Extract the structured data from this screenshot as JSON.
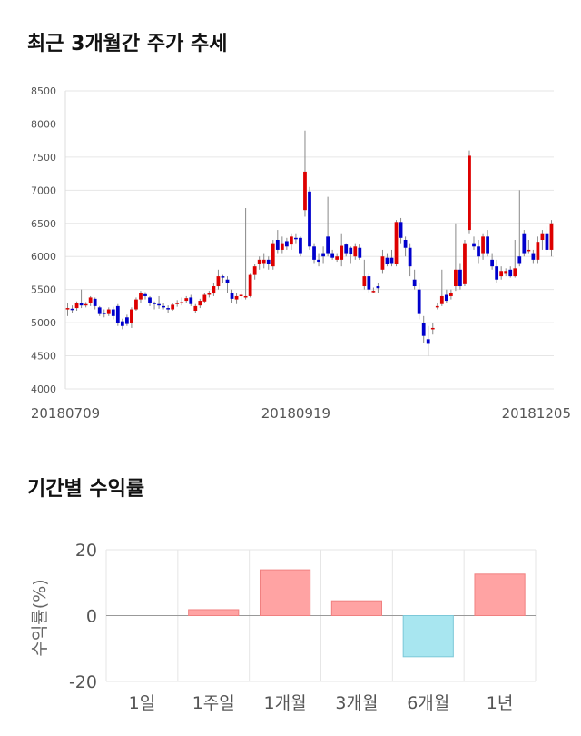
{
  "sections": {
    "price_title": "최근 3개월간 주가 추세",
    "return_title": "기간별 수익률"
  },
  "colors": {
    "up": "#dd0000",
    "down": "#0000cc",
    "bar_pos": "#ffa3a3",
    "bar_neg": "#a8e6f0",
    "grid": "#e6e6e6"
  },
  "chart_data": [
    {
      "type": "candlestick",
      "title": "최근 3개월간 주가 추세",
      "x_tick_labels": [
        "20180709",
        "20180919",
        "20181205"
      ],
      "y_ticks": [
        4000,
        4500,
        5000,
        5500,
        6000,
        6500,
        7000,
        7500,
        8000,
        8500
      ],
      "ylim": [
        4000,
        8500
      ],
      "grid": true,
      "candles": [
        [
          5200,
          5220,
          5100,
          5300
        ],
        [
          5210,
          5200,
          5150,
          5260
        ],
        [
          5220,
          5300,
          5180,
          5320
        ],
        [
          5290,
          5260,
          5220,
          5500
        ],
        [
          5260,
          5280,
          5230,
          5310
        ],
        [
          5300,
          5380,
          5250,
          5400
        ],
        [
          5360,
          5250,
          5200,
          5380
        ],
        [
          5230,
          5130,
          5100,
          5250
        ],
        [
          5150,
          5140,
          5080,
          5200
        ],
        [
          5130,
          5200,
          5100,
          5230
        ],
        [
          5200,
          5100,
          5050,
          5240
        ],
        [
          5250,
          5000,
          4950,
          5280
        ],
        [
          5020,
          4950,
          4900,
          5060
        ],
        [
          5080,
          4980,
          4950,
          5120
        ],
        [
          5000,
          5200,
          4920,
          5230
        ],
        [
          5200,
          5350,
          5180,
          5380
        ],
        [
          5350,
          5450,
          5300,
          5480
        ],
        [
          5430,
          5400,
          5350,
          5460
        ],
        [
          5380,
          5290,
          5250,
          5400
        ],
        [
          5300,
          5280,
          5200,
          5320
        ],
        [
          5280,
          5260,
          5210,
          5400
        ],
        [
          5250,
          5230,
          5200,
          5300
        ],
        [
          5220,
          5200,
          5150,
          5260
        ],
        [
          5200,
          5270,
          5180,
          5300
        ],
        [
          5280,
          5300,
          5240,
          5340
        ],
        [
          5290,
          5310,
          5260,
          5380
        ],
        [
          5330,
          5370,
          5300,
          5400
        ],
        [
          5380,
          5280,
          5250,
          5420
        ],
        [
          5180,
          5250,
          5150,
          5280
        ],
        [
          5260,
          5330,
          5220,
          5360
        ],
        [
          5320,
          5420,
          5300,
          5450
        ],
        [
          5420,
          5450,
          5380,
          5480
        ],
        [
          5440,
          5550,
          5400,
          5600
        ],
        [
          5550,
          5700,
          5500,
          5800
        ],
        [
          5700,
          5680,
          5600,
          5720
        ],
        [
          5650,
          5600,
          5450,
          5700
        ],
        [
          5450,
          5360,
          5300,
          5500
        ],
        [
          5350,
          5400,
          5280,
          5450
        ],
        [
          5400,
          5420,
          5350,
          5480
        ],
        [
          5380,
          5400,
          5350,
          6730
        ],
        [
          5400,
          5720,
          5380,
          5750
        ],
        [
          5720,
          5850,
          5650,
          5880
        ],
        [
          5880,
          5950,
          5800,
          6000
        ],
        [
          5900,
          5950,
          5820,
          6050
        ],
        [
          5950,
          5880,
          5800,
          6000
        ],
        [
          5850,
          6200,
          5800,
          6250
        ],
        [
          6250,
          6100,
          6050,
          6400
        ],
        [
          6100,
          6200,
          6050,
          6300
        ],
        [
          6230,
          6150,
          6100,
          6280
        ],
        [
          6180,
          6300,
          6100,
          6350
        ],
        [
          6280,
          6270,
          6200,
          6350
        ],
        [
          6280,
          6050,
          6000,
          6300
        ],
        [
          6700,
          7280,
          6600,
          7900
        ],
        [
          6980,
          6150,
          6100,
          7050
        ],
        [
          6150,
          5950,
          5900,
          6200
        ],
        [
          5950,
          5920,
          5850,
          6050
        ],
        [
          6050,
          6000,
          5900,
          6150
        ],
        [
          6300,
          6050,
          6000,
          6900
        ],
        [
          6050,
          5980,
          5950,
          6100
        ],
        [
          5950,
          6000,
          5920,
          6050
        ],
        [
          5950,
          6160,
          5850,
          6350
        ],
        [
          6180,
          6050,
          6000,
          6200
        ],
        [
          6130,
          6030,
          5900,
          6150
        ],
        [
          6000,
          6150,
          5950,
          6200
        ],
        [
          6130,
          5980,
          5950,
          6180
        ],
        [
          5550,
          5700,
          5500,
          5950
        ],
        [
          5700,
          5500,
          5450,
          5750
        ],
        [
          5480,
          5480,
          5450,
          5530
        ],
        [
          5550,
          5520,
          5450,
          5600
        ],
        [
          5800,
          6000,
          5750,
          6100
        ],
        [
          5980,
          5880,
          5850,
          6050
        ],
        [
          5980,
          5900,
          5850,
          6100
        ],
        [
          5880,
          6520,
          5850,
          6550
        ],
        [
          6520,
          6280,
          6200,
          6580
        ],
        [
          6250,
          6130,
          6000,
          6300
        ],
        [
          6130,
          5850,
          5700,
          6200
        ],
        [
          5650,
          5550,
          5500,
          5800
        ],
        [
          5500,
          5130,
          5050,
          5600
        ],
        [
          5000,
          4800,
          4700,
          5100
        ],
        [
          4750,
          4680,
          4500,
          4950
        ],
        [
          4900,
          4920,
          4820,
          5000
        ],
        [
          5250,
          5250,
          5200,
          5300
        ],
        [
          5280,
          5400,
          5250,
          5800
        ],
        [
          5420,
          5330,
          5300,
          5500
        ],
        [
          5400,
          5450,
          5350,
          5500
        ],
        [
          5550,
          5800,
          5480,
          6500
        ],
        [
          5800,
          5550,
          5500,
          5900
        ],
        [
          5580,
          6200,
          5550,
          6250
        ],
        [
          6400,
          7520,
          6350,
          7600
        ],
        [
          6200,
          6150,
          6100,
          6300
        ],
        [
          6150,
          6000,
          5900,
          6250
        ],
        [
          6050,
          6300,
          5950,
          6350
        ],
        [
          6300,
          6050,
          6000,
          6400
        ],
        [
          5950,
          5850,
          5800,
          6050
        ],
        [
          5850,
          5650,
          5600,
          5950
        ],
        [
          5700,
          5780,
          5650,
          5850
        ],
        [
          5750,
          5780,
          5700,
          5820
        ],
        [
          5800,
          5700,
          5680,
          5850
        ],
        [
          5700,
          5820,
          5680,
          6250
        ],
        [
          6000,
          5900,
          5850,
          7000
        ],
        [
          6350,
          6050,
          6000,
          6400
        ],
        [
          6100,
          6100,
          6050,
          6250
        ],
        [
          6050,
          5950,
          5900,
          6100
        ],
        [
          5950,
          6220,
          5900,
          6300
        ],
        [
          6250,
          6350,
          6100,
          6400
        ],
        [
          6350,
          6100,
          6050,
          6450
        ],
        [
          6100,
          6500,
          6000,
          6550
        ]
      ]
    },
    {
      "type": "bar",
      "title": "기간별 수익률",
      "ylabel": "수익률(%)",
      "categories": [
        "1일",
        "1주일",
        "1개월",
        "3개월",
        "6개월",
        "1년"
      ],
      "values": [
        0,
        1.8,
        13.9,
        4.5,
        -12.5,
        12.6
      ],
      "y_ticks": [
        -20,
        0,
        20
      ],
      "ylim": [
        -20,
        20
      ],
      "grid": true
    }
  ]
}
